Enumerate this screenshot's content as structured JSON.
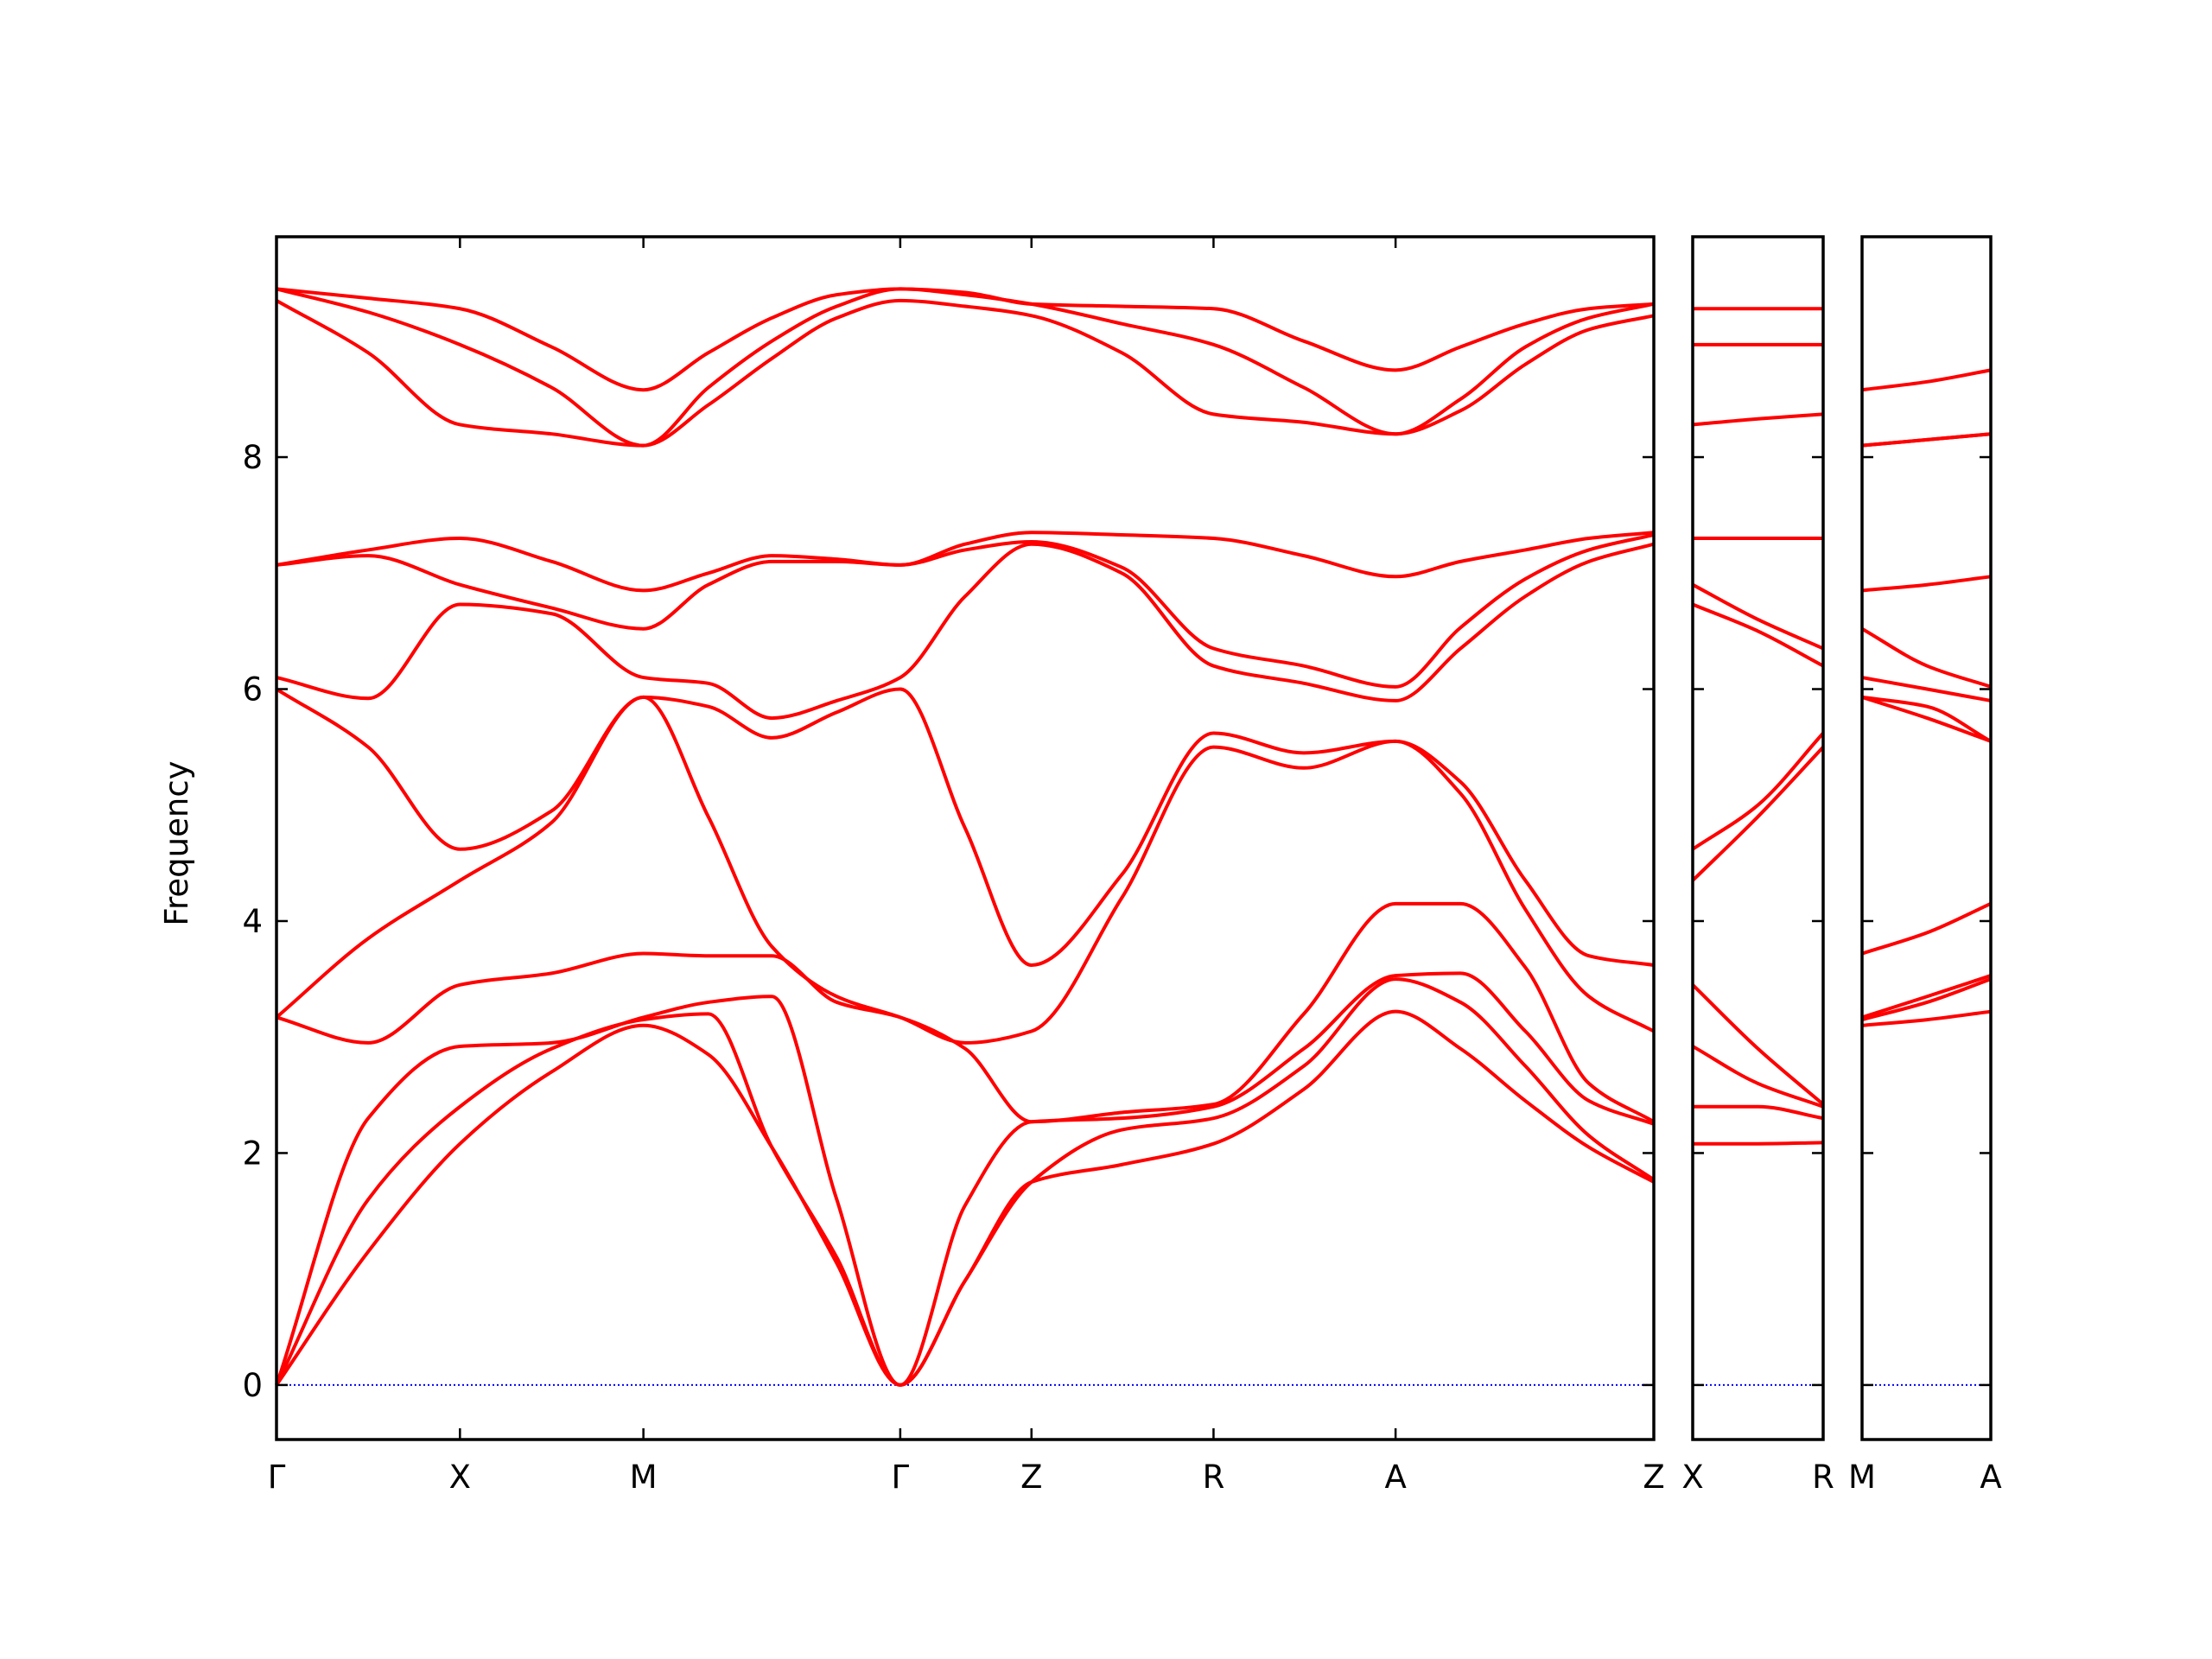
{
  "chart_data": [
    {
      "type": "line",
      "ylabel": "Frequency",
      "color": "#ff0000",
      "zero_line_color": "#0000ff",
      "xlim": [
        0,
        9.76
      ],
      "ylim": [
        -0.47,
        9.9
      ],
      "yticks": [
        0,
        2,
        4,
        6,
        8
      ],
      "xticks": [
        {
          "value": 0,
          "label": "Γ"
        },
        {
          "value": 1.3,
          "label": "X"
        },
        {
          "value": 2.6,
          "label": "M"
        },
        {
          "value": 4.42,
          "label": "Γ"
        },
        {
          "value": 5.35,
          "label": "Z"
        },
        {
          "value": 6.64,
          "label": "R"
        },
        {
          "value": 7.93,
          "label": "A"
        },
        {
          "value": 9.76,
          "label": "Z"
        }
      ],
      "x": [
        0,
        0.65,
        1.3,
        1.95,
        2.6,
        3.06,
        3.51,
        3.97,
        4.42,
        4.88,
        5.35,
        5.99,
        6.64,
        7.28,
        7.93,
        8.39,
        8.85,
        9.3,
        9.76
      ],
      "series": [
        {
          "values": [
            0,
            1.15,
            2.08,
            2.7,
            3.1,
            2.85,
            2.05,
            1.05,
            0,
            0.9,
            1.75,
            1.9,
            2.08,
            2.55,
            3.22,
            2.9,
            2.45,
            2.05,
            1.75
          ]
        },
        {
          "values": [
            0,
            1.6,
            2.4,
            2.9,
            3.15,
            3.2,
            2.05,
            1.1,
            0,
            0.9,
            1.75,
            2.2,
            2.3,
            2.75,
            3.5,
            3.3,
            2.75,
            2.15,
            1.77
          ]
        },
        {
          "values": [
            0,
            2.3,
            2.92,
            2.95,
            3.17,
            3.3,
            3.35,
            1.6,
            0,
            1.55,
            2.27,
            2.3,
            2.4,
            2.9,
            3.53,
            3.55,
            3.05,
            2.45,
            2.25
          ]
        },
        {
          "values": [
            3.17,
            2.95,
            3.45,
            3.55,
            3.72,
            3.7,
            3.7,
            3.3,
            3.17,
            2.9,
            2.27,
            2.35,
            2.42,
            3.2,
            4.15,
            4.15,
            3.6,
            2.6,
            2.27
          ]
        },
        {
          "values": [
            3.17,
            3.85,
            4.35,
            4.85,
            5.93,
            4.9,
            3.78,
            3.35,
            3.17,
            2.95,
            3.05,
            4.2,
            5.5,
            5.32,
            5.55,
            5.1,
            4.1,
            3.35,
            3.05
          ]
        },
        {
          "values": [
            6.0,
            5.5,
            4.62,
            4.95,
            5.93,
            5.85,
            5.58,
            5.8,
            6.0,
            4.8,
            3.62,
            4.4,
            5.62,
            5.45,
            5.55,
            5.2,
            4.35,
            3.7,
            3.62
          ]
        },
        {
          "values": [
            6.1,
            5.92,
            6.73,
            6.65,
            6.1,
            6.05,
            5.75,
            5.9,
            6.1,
            6.8,
            7.25,
            7.0,
            6.2,
            6.05,
            5.9,
            6.35,
            6.8,
            7.1,
            7.25
          ]
        },
        {
          "values": [
            7.07,
            7.15,
            6.9,
            6.7,
            6.52,
            6.9,
            7.1,
            7.1,
            7.07,
            7.2,
            7.27,
            7.05,
            6.35,
            6.2,
            6.02,
            6.53,
            6.95,
            7.2,
            7.33
          ]
        },
        {
          "values": [
            7.07,
            7.2,
            7.3,
            7.1,
            6.85,
            7.0,
            7.15,
            7.12,
            7.07,
            7.25,
            7.35,
            7.33,
            7.3,
            7.15,
            6.97,
            7.1,
            7.2,
            7.3,
            7.35
          ]
        },
        {
          "values": [
            9.35,
            8.9,
            8.28,
            8.2,
            8.1,
            8.45,
            8.85,
            9.2,
            9.35,
            9.3,
            9.22,
            8.9,
            8.37,
            8.3,
            8.2,
            8.4,
            8.8,
            9.1,
            9.22
          ]
        },
        {
          "values": [
            9.45,
            9.25,
            8.97,
            8.6,
            8.1,
            8.6,
            9.0,
            9.3,
            9.45,
            9.4,
            9.32,
            9.15,
            8.97,
            8.6,
            8.2,
            8.5,
            8.95,
            9.2,
            9.32
          ]
        },
        {
          "values": [
            9.45,
            9.37,
            9.28,
            8.95,
            8.58,
            8.9,
            9.2,
            9.4,
            9.45,
            9.42,
            9.32,
            9.3,
            9.28,
            9.0,
            8.75,
            8.95,
            9.15,
            9.28,
            9.32
          ]
        }
      ]
    },
    {
      "type": "line",
      "color": "#ff0000",
      "zero_line_color": "#0000ff",
      "xlim": [
        0,
        0.92
      ],
      "ylim": [
        -0.47,
        9.9
      ],
      "xticks": [
        {
          "value": 0,
          "label": "X"
        },
        {
          "value": 0.92,
          "label": "R"
        }
      ],
      "x": [
        0,
        0.46,
        0.92
      ],
      "series": [
        {
          "values": [
            2.08,
            2.08,
            2.09
          ]
        },
        {
          "values": [
            2.4,
            2.4,
            2.3
          ]
        },
        {
          "values": [
            2.92,
            2.6,
            2.4
          ]
        },
        {
          "values": [
            3.45,
            2.9,
            2.42
          ]
        },
        {
          "values": [
            4.35,
            4.9,
            5.5
          ]
        },
        {
          "values": [
            4.62,
            5.0,
            5.62
          ]
        },
        {
          "values": [
            6.73,
            6.5,
            6.2
          ]
        },
        {
          "values": [
            6.9,
            6.6,
            6.35
          ]
        },
        {
          "values": [
            7.3,
            7.3,
            7.3
          ]
        },
        {
          "values": [
            8.28,
            8.33,
            8.37
          ]
        },
        {
          "values": [
            8.97,
            8.97,
            8.97
          ]
        },
        {
          "values": [
            9.28,
            9.28,
            9.28
          ]
        }
      ]
    },
    {
      "type": "line",
      "color": "#ff0000",
      "zero_line_color": "#0000ff",
      "xlim": [
        0,
        0.91
      ],
      "ylim": [
        -0.47,
        9.9
      ],
      "xticks": [
        {
          "value": 0,
          "label": "M"
        },
        {
          "value": 0.91,
          "label": "A"
        }
      ],
      "x": [
        0,
        0.46,
        0.91
      ],
      "series": [
        {
          "values": [
            3.1,
            3.15,
            3.22
          ]
        },
        {
          "values": [
            3.15,
            3.3,
            3.5
          ]
        },
        {
          "values": [
            3.17,
            3.35,
            3.53
          ]
        },
        {
          "values": [
            3.72,
            3.9,
            4.15
          ]
        },
        {
          "values": [
            5.93,
            5.75,
            5.55
          ]
        },
        {
          "values": [
            5.93,
            5.85,
            5.55
          ]
        },
        {
          "values": [
            6.1,
            6.0,
            5.9
          ]
        },
        {
          "values": [
            6.52,
            6.2,
            6.02
          ]
        },
        {
          "values": [
            6.85,
            6.9,
            6.97
          ]
        },
        {
          "values": [
            8.1,
            8.15,
            8.2
          ]
        },
        {
          "values": [
            8.1,
            8.15,
            8.2
          ]
        },
        {
          "values": [
            8.58,
            8.65,
            8.75
          ]
        }
      ]
    }
  ]
}
